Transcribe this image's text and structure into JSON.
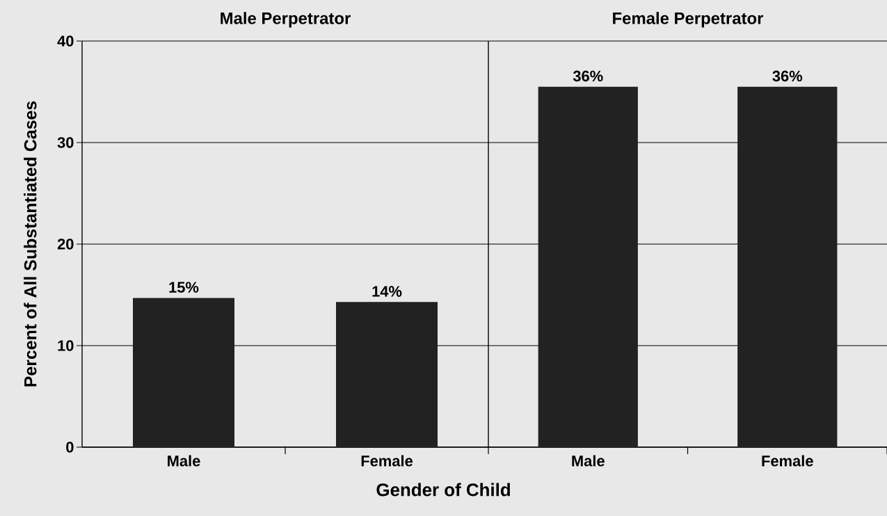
{
  "chart_data": [
    {
      "type": "bar",
      "title": "Male Perpetrator",
      "xlabel": "Gender of Child",
      "ylabel": "Percent of All Substantiated Cases",
      "categories": [
        "Male",
        "Female"
      ],
      "values": [
        14.7,
        14.3
      ],
      "value_labels": [
        "15%",
        "14%"
      ],
      "color": "#222222",
      "ylim": [
        0,
        40
      ],
      "yticks": [
        0,
        10,
        20,
        30,
        40
      ],
      "grid": "y"
    },
    {
      "type": "bar",
      "title": "Female Perpetrator",
      "categories": [
        "Male",
        "Female"
      ],
      "values": [
        35.5,
        35.5
      ],
      "value_labels": [
        "36%",
        "36%"
      ],
      "color": "#222222",
      "ylim": [
        0,
        40
      ],
      "yticks": [
        0,
        10,
        20,
        30,
        40
      ],
      "grid": "y",
      "tick_labels": "x"
    }
  ]
}
